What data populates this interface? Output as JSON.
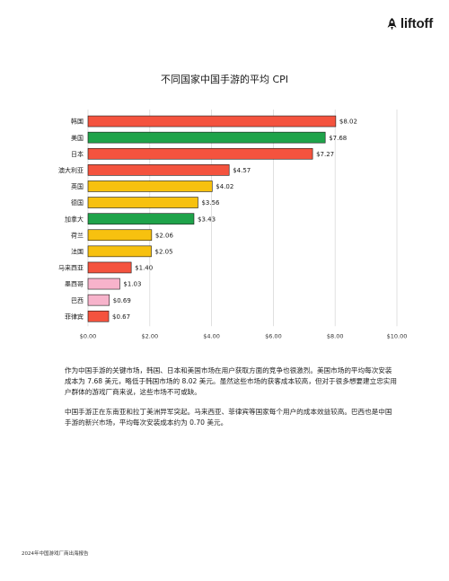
{
  "brand": {
    "name": "liftoff",
    "icon": "rocket-icon"
  },
  "chart_data": {
    "type": "bar",
    "orientation": "horizontal",
    "title": "不同国家中国手游的平均 CPI",
    "categories": [
      "韩国",
      "美国",
      "日本",
      "澳大利亚",
      "英国",
      "德国",
      "加拿大",
      "荷兰",
      "法国",
      "马来西亚",
      "墨西哥",
      "巴西",
      "菲律宾"
    ],
    "values": [
      8.02,
      7.68,
      7.27,
      4.57,
      4.02,
      3.56,
      3.43,
      2.06,
      2.05,
      1.4,
      1.03,
      0.69,
      0.67
    ],
    "value_labels": [
      "$8.02",
      "$7.68",
      "$7.27",
      "$4.57",
      "$4.02",
      "$3.56",
      "$3.43",
      "$2.06",
      "$2.05",
      "$1.40",
      "$1.03",
      "$0.69",
      "$0.67"
    ],
    "colors": [
      "#f4533e",
      "#1fa34a",
      "#f4533e",
      "#f4533e",
      "#f7c10f",
      "#f7c10f",
      "#1fa34a",
      "#f7c10f",
      "#f7c10f",
      "#f4533e",
      "#f7b3cb",
      "#f7b3cb",
      "#f4533e"
    ],
    "xlim": [
      0,
      10
    ],
    "xticks": [
      0,
      2,
      4,
      6,
      8,
      10
    ],
    "xtick_labels": [
      "$0.00",
      "$2.00",
      "$4.00",
      "$6.00",
      "$8.00",
      "$10.00"
    ],
    "grid": true
  },
  "paragraphs": [
    "作为中国手游的关键市场，韩国、日本和美国市场在用户获取方面的竞争也很激烈。美国市场的平均每次安装成本为 7.68 美元，略低于韩国市场的 8.02 美元。虽然这些市场的获客成本较高，但对于很多想要建立忠实用户群体的游戏厂商来说，这些市场不可或缺。",
    "中国手游正在东南亚和拉丁美洲异军突起。马来西亚、菲律宾等国家每个用户的成本效益较高。巴西也是中国手游的新兴市场，平均每次安装成本约为 0.70 美元。"
  ],
  "footer": "2024年中国游戏厂商出海报告"
}
